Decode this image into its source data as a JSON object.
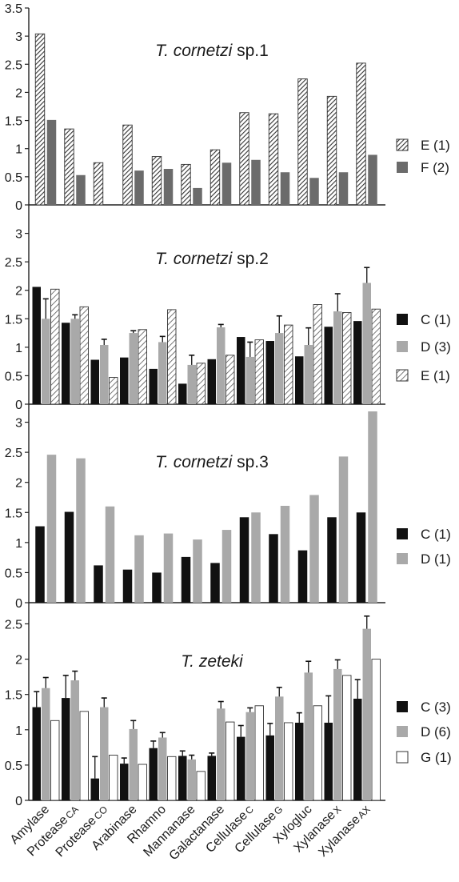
{
  "chart_data": [
    {
      "type": "bar",
      "title_italic": "T. cornetzi",
      "title_rest": "sp.1",
      "ylim": [
        0,
        3.5
      ],
      "yticks": [
        "0",
        "0.5",
        "1",
        "1.5",
        "2",
        "2.5",
        "3",
        "3.5"
      ],
      "series": [
        {
          "name": "E (1)",
          "pattern": "hatch-dense",
          "values": [
            3.04,
            1.35,
            0.75,
            1.42,
            0.86,
            0.72,
            0.98,
            1.64,
            1.62,
            2.24,
            1.93,
            2.52
          ]
        },
        {
          "name": "F (2)",
          "pattern": "dark-gray",
          "values": [
            1.51,
            0.53,
            null,
            0.61,
            0.64,
            0.3,
            0.75,
            0.8,
            0.58,
            0.48,
            0.58,
            0.89
          ]
        }
      ]
    },
    {
      "type": "bar",
      "title_italic": "T. cornetzi",
      "title_rest": "sp.2",
      "ylim": [
        0,
        3.5
      ],
      "yticks": [
        "0",
        "0.5",
        "1",
        "1.5",
        "2",
        "2.5",
        "3"
      ],
      "series": [
        {
          "name": "C (1)",
          "pattern": "black",
          "values": [
            2.06,
            1.43,
            0.78,
            0.82,
            0.62,
            0.36,
            0.79,
            1.18,
            1.11,
            0.84,
            1.36,
            1.46
          ],
          "errors": [
            null,
            null,
            null,
            null,
            null,
            null,
            null,
            null,
            null,
            null,
            null,
            null
          ]
        },
        {
          "name": "D (3)",
          "pattern": "gray",
          "values": [
            1.5,
            1.5,
            1.04,
            1.25,
            1.09,
            0.69,
            1.35,
            0.83,
            1.25,
            1.04,
            1.63,
            2.13
          ],
          "errors": [
            0.35,
            0.07,
            0.1,
            0.04,
            0.1,
            0.17,
            0.05,
            0.26,
            0.3,
            0.3,
            0.31,
            0.27
          ]
        },
        {
          "name": "E (1)",
          "pattern": "hatch-sparse",
          "values": [
            2.02,
            1.71,
            0.47,
            1.31,
            1.66,
            0.72,
            0.86,
            1.13,
            1.39,
            1.75,
            1.61,
            1.67
          ],
          "errors": [
            null,
            null,
            null,
            null,
            null,
            null,
            null,
            null,
            null,
            null,
            null,
            null
          ]
        }
      ]
    },
    {
      "type": "bar",
      "title_italic": "T. cornetzi",
      "title_rest": "sp.3",
      "ylim": [
        0,
        3.3
      ],
      "yticks": [
        "0",
        "0.5",
        "1",
        "1.5",
        "2",
        "2.5",
        "3"
      ],
      "series": [
        {
          "name": "C (1)",
          "pattern": "black",
          "values": [
            1.27,
            1.51,
            0.62,
            0.55,
            0.5,
            0.76,
            0.66,
            1.42,
            1.14,
            0.87,
            1.42,
            1.5
          ]
        },
        {
          "name": "D (1)",
          "pattern": "gray",
          "values": [
            2.46,
            2.4,
            1.6,
            1.12,
            1.15,
            1.05,
            1.21,
            1.5,
            1.61,
            1.79,
            2.43,
            3.18
          ]
        }
      ]
    },
    {
      "type": "bar",
      "title_italic": "T. zeteki",
      "title_rest": "",
      "ylim": [
        0,
        2.8
      ],
      "yticks": [
        "0",
        "0.5",
        "1",
        "1.5",
        "2",
        "2.5"
      ],
      "series": [
        {
          "name": "C (3)",
          "pattern": "black",
          "values": [
            1.32,
            1.45,
            0.31,
            0.52,
            0.74,
            0.63,
            0.63,
            0.9,
            0.92,
            1.1,
            1.1,
            1.44
          ],
          "errors": [
            0.22,
            0.32,
            0.31,
            0.08,
            0.1,
            0.07,
            0.04,
            0.16,
            0.17,
            0.14,
            0.38,
            0.27
          ]
        },
        {
          "name": "D (6)",
          "pattern": "gray",
          "values": [
            1.59,
            1.7,
            1.32,
            1.01,
            0.89,
            0.58,
            1.3,
            1.25,
            1.47,
            1.81,
            1.86,
            2.43
          ],
          "errors": [
            0.15,
            0.13,
            0.13,
            0.12,
            0.07,
            0.06,
            0.1,
            0.06,
            0.13,
            0.16,
            0.13,
            0.18
          ]
        },
        {
          "name": "G (1)",
          "pattern": "white",
          "values": [
            1.13,
            1.26,
            0.64,
            0.51,
            0.62,
            0.41,
            1.11,
            1.34,
            1.1,
            1.34,
            1.77,
            2.0
          ],
          "errors": [
            null,
            null,
            null,
            null,
            null,
            null,
            null,
            null,
            null,
            null,
            null,
            null
          ]
        }
      ]
    }
  ],
  "categories": [
    {
      "main": "Amylase",
      "sub": ""
    },
    {
      "main": "Protease",
      "sub": "CA"
    },
    {
      "main": "Protease",
      "sub": "CO"
    },
    {
      "main": "Arabinase",
      "sub": ""
    },
    {
      "main": "Rhamno",
      "sub": ""
    },
    {
      "main": "Mannanase",
      "sub": ""
    },
    {
      "main": "Galactanase",
      "sub": ""
    },
    {
      "main": "Cellulase",
      "sub": "C"
    },
    {
      "main": "Cellulase",
      "sub": "G"
    },
    {
      "main": "Xylogluc",
      "sub": ""
    },
    {
      "main": "Xylanase",
      "sub": "X"
    },
    {
      "main": "Xylanase",
      "sub": "AX"
    }
  ],
  "colors": {
    "black": "#111111",
    "dark-gray": "#6b6b6b",
    "gray": "#a9a9a9",
    "white": "#ffffff",
    "axis": "#222222"
  }
}
